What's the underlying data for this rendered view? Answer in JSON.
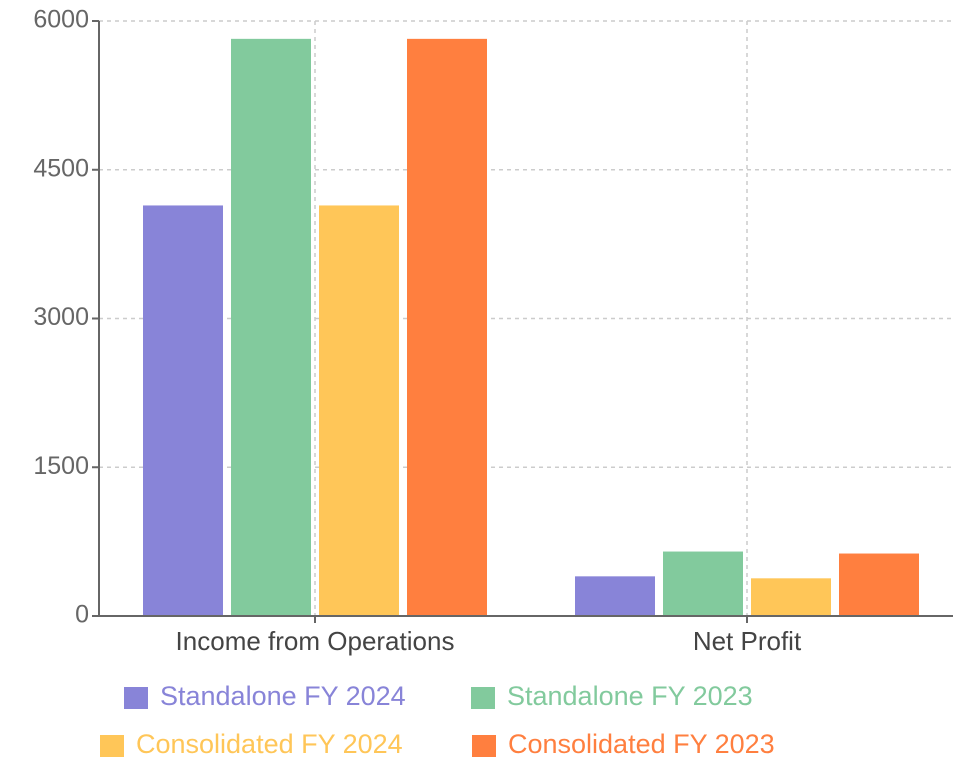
{
  "chart_data": {
    "type": "bar",
    "categories": [
      "Income from Operations",
      "Net Profit"
    ],
    "series": [
      {
        "name": "Standalone FY 2024",
        "color": "#8884d8",
        "values": [
          4140,
          400
        ]
      },
      {
        "name": "Standalone FY 2023",
        "color": "#82ca9d",
        "values": [
          5820,
          650
        ]
      },
      {
        "name": "Consolidated FY 2024",
        "color": "#ffc658",
        "values": [
          4140,
          380
        ]
      },
      {
        "name": "Consolidated FY 2023",
        "color": "#ff7f3f",
        "values": [
          5820,
          630
        ]
      }
    ],
    "ylim": [
      0,
      6000
    ],
    "yticks": [
      0,
      1500,
      3000,
      4500,
      6000
    ],
    "grid": true,
    "legend": "bottom"
  }
}
